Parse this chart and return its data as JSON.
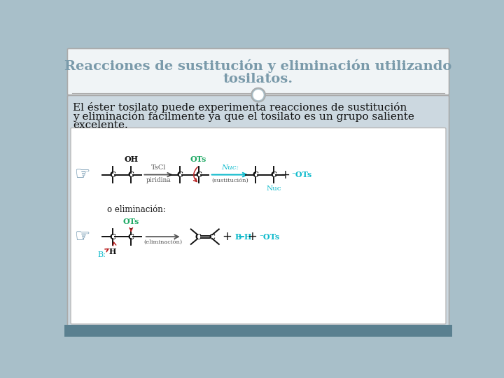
{
  "title_line1": "Reacciones de sustitución y eliminación utilizando",
  "title_line2": "tosilatos.",
  "title_color": "#7a9aaa",
  "title_fontsize": 14,
  "bg_outer": "#a8bfc9",
  "bg_header": "#f0f4f6",
  "bg_content": "#ccd8e0",
  "bg_diagram": "#f8f8f8",
  "body_text_line1": "El éster tosilato puede experimenta reacciones de sustitución",
  "body_text_line2": "y eliminación fácilmente ya que el tosilato es un grupo saliente",
  "body_text_line3": "excelente.",
  "body_color": "#111111",
  "body_fontsize": 11,
  "OTs_color": "#22aa66",
  "arrow_color": "#bb2222",
  "nuc_color": "#11bbcc",
  "minus_ots_color": "#11bbcc",
  "bond_color": "#111111",
  "gray_color": "#555555",
  "elim_label": "o eliminación:",
  "blue_color": "#4a7a99"
}
